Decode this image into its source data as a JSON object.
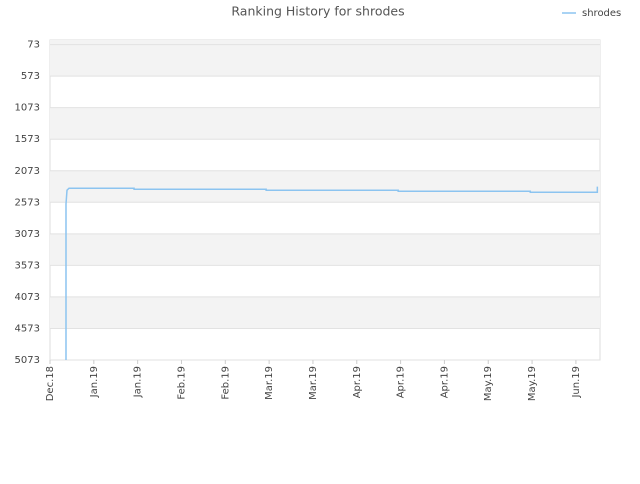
{
  "chart_data": {
    "type": "line",
    "title": "Ranking History for shrodes",
    "series": [
      {
        "name": "shrodes",
        "color": "#8cc4f0",
        "x": [
          0.365,
          0.365,
          0.365,
          0.388,
          0.434,
          1.918,
          1.918,
          4.932,
          4.932,
          7.945,
          7.945,
          10.959,
          10.959,
          12.489,
          12.489
        ],
        "values": [
          5073,
          2653,
          2600,
          2382,
          2350,
          2350,
          2366,
          2366,
          2382,
          2382,
          2398,
          2398,
          2414,
          2414,
          2325
        ]
      }
    ],
    "ylim": [
      5073,
      0
    ],
    "yticks": [
      73,
      573,
      1073,
      1573,
      2073,
      2573,
      3073,
      3573,
      4073,
      4573,
      5073
    ],
    "xlim": [
      0,
      12.55
    ],
    "xticks": [
      {
        "value": 0,
        "label": "Dec.18"
      },
      {
        "value": 1,
        "label": "Jan.19"
      },
      {
        "value": 2,
        "label": "Jan.19"
      },
      {
        "value": 3,
        "label": "Feb.19"
      },
      {
        "value": 4,
        "label": "Feb.19"
      },
      {
        "value": 5,
        "label": "Mar.19"
      },
      {
        "value": 6,
        "label": "Mar.19"
      },
      {
        "value": 7,
        "label": "Apr.19"
      },
      {
        "value": 8,
        "label": "Apr.19"
      },
      {
        "value": 9,
        "label": "Apr.19"
      },
      {
        "value": 10,
        "label": "May.19"
      },
      {
        "value": 11,
        "label": "May.19"
      },
      {
        "value": 12,
        "label": "Jun.19"
      }
    ],
    "grid": true,
    "bands": true,
    "legend": "top-right"
  }
}
